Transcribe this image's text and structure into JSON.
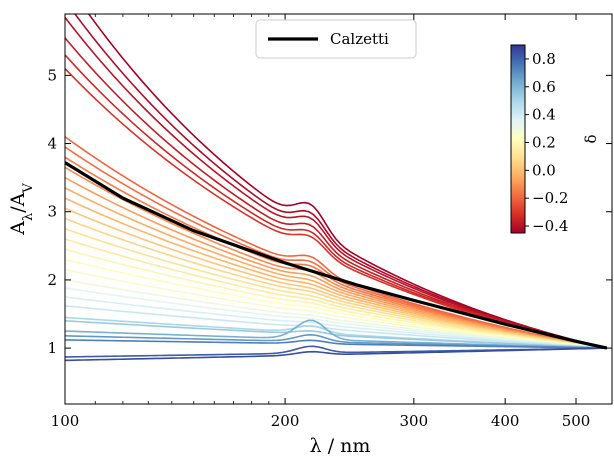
{
  "chart_data": {
    "type": "line",
    "title": "",
    "xlabel": "λ / nm",
    "ylabel": "A_λ/A_V",
    "xscale": "log",
    "xlim": [
      100,
      560
    ],
    "ylim": [
      0.18,
      5.9
    ],
    "xticks": [
      {
        "value": 100,
        "label": "100"
      },
      {
        "value": 200,
        "label": "200"
      },
      {
        "value": 300,
        "label": "300"
      },
      {
        "value": 400,
        "label": "400"
      },
      {
        "value": 500,
        "label": "500"
      }
    ],
    "yticks": [
      {
        "value": 1,
        "label": "1"
      },
      {
        "value": 2,
        "label": "2"
      },
      {
        "value": 3,
        "label": "3"
      },
      {
        "value": 4,
        "label": "4"
      },
      {
        "value": 5,
        "label": "5"
      }
    ],
    "legend": {
      "position": "top-center",
      "entries": [
        "Calzetti"
      ]
    },
    "reference_series": {
      "name": "Calzetti",
      "color": "#000000",
      "x": [
        100,
        120,
        150,
        200,
        250,
        300,
        400,
        500,
        551
      ],
      "y": [
        3.72,
        3.2,
        2.72,
        2.25,
        1.93,
        1.7,
        1.35,
        1.1,
        1.0
      ]
    },
    "normalization": {
      "x": 551,
      "y": 1.0
    },
    "family": {
      "note_delta_range": [
        -0.45,
        0.85
      ],
      "members": [
        {
          "a100": 6.4,
          "bump": 0.35,
          "delta": -0.45
        },
        {
          "a100": 6.1,
          "bump": 0.3,
          "delta": -0.42
        },
        {
          "a100": 5.85,
          "bump": 0.28,
          "delta": -0.4
        },
        {
          "a100": 5.55,
          "bump": 0.25,
          "delta": -0.37
        },
        {
          "a100": 5.3,
          "bump": 0.22,
          "delta": -0.34
        },
        {
          "a100": 5.1,
          "bump": 0.2,
          "delta": -0.31
        },
        {
          "a100": 4.1,
          "bump": 0.18,
          "delta": -0.2
        },
        {
          "a100": 3.95,
          "bump": 0.15,
          "delta": -0.18
        },
        {
          "a100": 3.8,
          "bump": 0.13,
          "delta": -0.16
        },
        {
          "a100": 3.65,
          "bump": 0.1,
          "delta": -0.12
        },
        {
          "a100": 3.5,
          "bump": 0.08,
          "delta": -0.08
        },
        {
          "a100": 3.35,
          "bump": 0.06,
          "delta": -0.05
        },
        {
          "a100": 3.2,
          "bump": 0.05,
          "delta": -0.02
        },
        {
          "a100": 3.05,
          "bump": 0.04,
          "delta": 0.02
        },
        {
          "a100": 2.9,
          "bump": 0.04,
          "delta": 0.06
        },
        {
          "a100": 2.75,
          "bump": 0.03,
          "delta": 0.1
        },
        {
          "a100": 2.6,
          "bump": 0.03,
          "delta": 0.14
        },
        {
          "a100": 2.45,
          "bump": 0.03,
          "delta": 0.18
        },
        {
          "a100": 2.3,
          "bump": 0.03,
          "delta": 0.22
        },
        {
          "a100": 2.15,
          "bump": 0.02,
          "delta": 0.26
        },
        {
          "a100": 2.0,
          "bump": 0.02,
          "delta": 0.3
        },
        {
          "a100": 1.88,
          "bump": 0.02,
          "delta": 0.34
        },
        {
          "a100": 1.75,
          "bump": 0.02,
          "delta": 0.38
        },
        {
          "a100": 1.62,
          "bump": 0.02,
          "delta": 0.42
        },
        {
          "a100": 1.45,
          "bump": 0.1,
          "delta": 0.5
        },
        {
          "a100": 1.4,
          "bump": 0.05,
          "delta": 0.54
        },
        {
          "a100": 1.25,
          "bump": 0.28,
          "delta": 0.62
        },
        {
          "a100": 1.18,
          "bump": 0.1,
          "delta": 0.68
        },
        {
          "a100": 1.12,
          "bump": 0.05,
          "delta": 0.74
        },
        {
          "a100": 0.87,
          "bump": 0.1,
          "delta": 0.82
        },
        {
          "a100": 0.82,
          "bump": 0.05,
          "delta": 0.85
        }
      ]
    },
    "colorbar": {
      "label": "δ",
      "range": [
        -0.45,
        0.9
      ],
      "ticks": [
        {
          "value": 0.8,
          "label": "0.8"
        },
        {
          "value": 0.6,
          "label": "0.6"
        },
        {
          "value": 0.4,
          "label": "0.4"
        },
        {
          "value": 0.2,
          "label": "0.2"
        },
        {
          "value": 0.0,
          "label": "0.0"
        },
        {
          "value": -0.2,
          "label": "−0.2"
        },
        {
          "value": -0.4,
          "label": "−0.4"
        }
      ],
      "colormap": [
        "#a50026",
        "#d73027",
        "#f46d43",
        "#fdae61",
        "#fee090",
        "#ffffbf",
        "#e0f3f8",
        "#abd9e9",
        "#74add1",
        "#4575b4",
        "#313695"
      ]
    }
  }
}
